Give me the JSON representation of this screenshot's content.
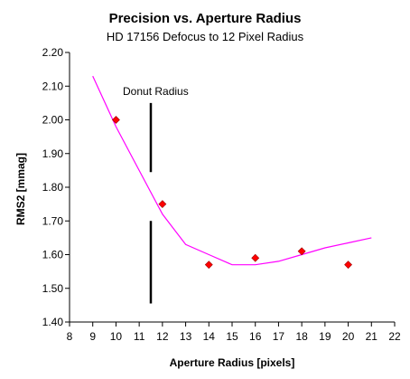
{
  "chart_data": {
    "type": "scatter",
    "title": "Precision vs. Aperture Radius",
    "subtitle": "HD 17156 Defocus to 12 Pixel Radius",
    "xlabel": "Aperture Radius [pixels]",
    "ylabel": "RMS2 [mmag]",
    "xlim": [
      8,
      22
    ],
    "ylim": [
      1.4,
      2.2
    ],
    "xticks": [
      "8",
      "9",
      "10",
      "11",
      "12",
      "13",
      "14",
      "15",
      "16",
      "17",
      "18",
      "19",
      "20",
      "21",
      "22"
    ],
    "yticks": [
      "1.40",
      "1.50",
      "1.60",
      "1.70",
      "1.80",
      "1.90",
      "2.00",
      "2.10",
      "2.20"
    ],
    "grid": false,
    "legend": "none",
    "series": [
      {
        "kind": "markers",
        "marker": "diamond",
        "color": "#ff0000",
        "x": [
          10,
          12,
          14,
          16,
          18,
          20
        ],
        "y": [
          2.0,
          1.75,
          1.57,
          1.59,
          1.61,
          1.57
        ]
      },
      {
        "kind": "line",
        "color": "#ff00ff",
        "x": [
          9,
          10,
          11,
          12,
          13,
          14,
          15,
          16,
          17,
          18,
          19,
          20,
          21
        ],
        "y": [
          2.13,
          1.98,
          1.85,
          1.72,
          1.63,
          1.6,
          1.57,
          1.57,
          1.58,
          1.6,
          1.62,
          1.635,
          1.65
        ]
      }
    ],
    "annotations": [
      {
        "text": "Donut Radius",
        "marker_x": 11.5,
        "marker_segments": [
          [
            1.845,
            2.05
          ],
          [
            1.455,
            1.7
          ]
        ]
      }
    ]
  }
}
